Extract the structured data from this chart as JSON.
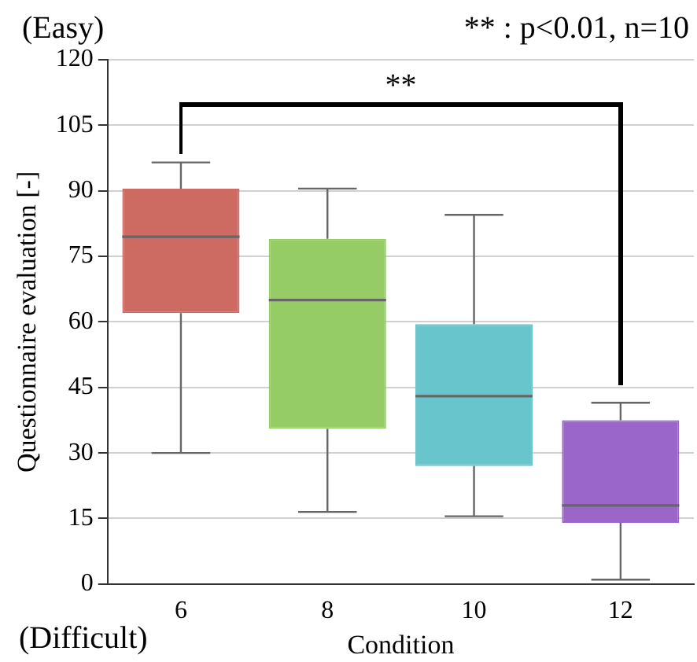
{
  "chart_data": {
    "type": "box",
    "xlabel": "Condition",
    "ylabel": "Questionnaire evaluation [-]",
    "categories": [
      "6",
      "8",
      "10",
      "12"
    ],
    "boxes": [
      {
        "low": 30,
        "q1": 62,
        "median": 79.5,
        "q3": 90.5,
        "high": 96.5
      },
      {
        "low": 16.5,
        "q1": 35.5,
        "median": 65,
        "q3": 79,
        "high": 90.5
      },
      {
        "low": 15.5,
        "q1": 27,
        "median": 43,
        "q3": 59.5,
        "high": 84.5
      },
      {
        "low": 1,
        "q1": 14,
        "median": 18,
        "q3": 37.5,
        "high": 41.5
      }
    ],
    "colors": [
      "#cd6b62",
      "#95cc66",
      "#69c5cc",
      "#9b66c9"
    ],
    "ylim": [
      0,
      120
    ],
    "yticks": [
      0,
      15,
      30,
      45,
      60,
      75,
      90,
      105,
      120
    ],
    "grid": "y",
    "annotations": [
      "(Easy)",
      "(Difficult)",
      "** : p<0.01, n=10",
      "**"
    ]
  }
}
